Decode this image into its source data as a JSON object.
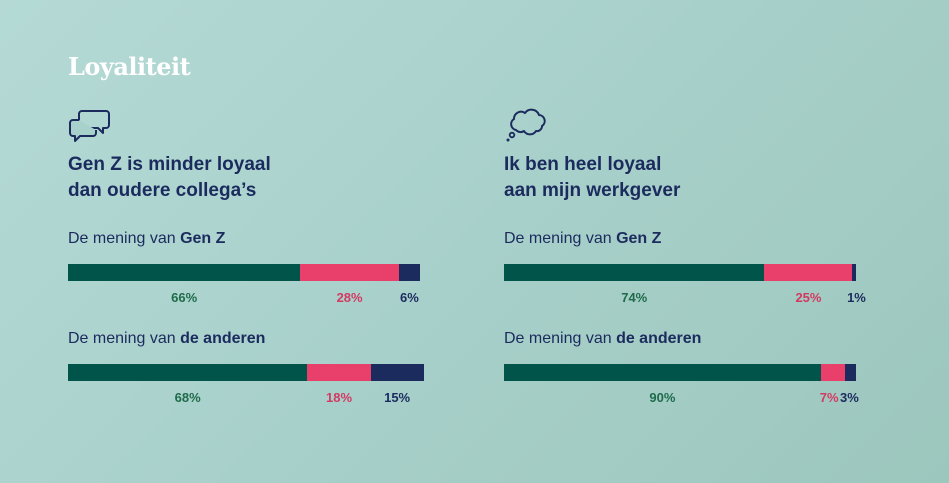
{
  "title": "Loyaliteit",
  "colors": {
    "green": "#00544a",
    "pink": "#e8406b",
    "navy": "#1b2b5e",
    "green_text": "#1f6b4a",
    "pink_text": "#d23a63",
    "navy_text": "#1b2b5e"
  },
  "panels": [
    {
      "icon": "speech-bubbles-icon",
      "heading": [
        "Gen Z is minder loyaal",
        "dan oudere collega’s"
      ],
      "groups": [
        {
          "label_prefix": "De mening van ",
          "label_bold": "Gen Z"
        },
        {
          "label_prefix": "De mening van ",
          "label_bold": "de anderen"
        }
      ]
    },
    {
      "icon": "thought-cloud-icon",
      "heading": [
        "Ik ben heel loyaal",
        "aan mijn werkgever"
      ],
      "groups": [
        {
          "label_prefix": "De mening van ",
          "label_bold": "Gen Z"
        },
        {
          "label_prefix": "De mening van ",
          "label_bold": "de anderen"
        }
      ]
    }
  ],
  "chart_data": [
    {
      "type": "bar",
      "orientation": "horizontal-stacked",
      "title": "Gen Z is minder loyaal dan oudere collega’s",
      "categories": [
        "De mening van Gen Z",
        "De mening van de anderen"
      ],
      "series": [
        {
          "values": [
            66,
            68
          ],
          "labels": [
            "66%",
            "68%"
          ],
          "color": "#00544a"
        },
        {
          "values": [
            28,
            18
          ],
          "labels": [
            "28%",
            "18%"
          ],
          "color": "#e8406b"
        },
        {
          "values": [
            6,
            15
          ],
          "labels": [
            "6%",
            "15%"
          ],
          "color": "#1b2b5e"
        }
      ]
    },
    {
      "type": "bar",
      "orientation": "horizontal-stacked",
      "title": "Ik ben heel loyaal aan mijn werkgever",
      "categories": [
        "De mening van Gen Z",
        "De mening van de anderen"
      ],
      "series": [
        {
          "values": [
            74,
            90
          ],
          "labels": [
            "74%",
            "90%"
          ],
          "color": "#00544a"
        },
        {
          "values": [
            25,
            7
          ],
          "labels": [
            "25%",
            "7%"
          ],
          "color": "#e8406b"
        },
        {
          "values": [
            1,
            3
          ],
          "labels": [
            "1%",
            "3%"
          ],
          "color": "#1b2b5e"
        }
      ]
    }
  ]
}
